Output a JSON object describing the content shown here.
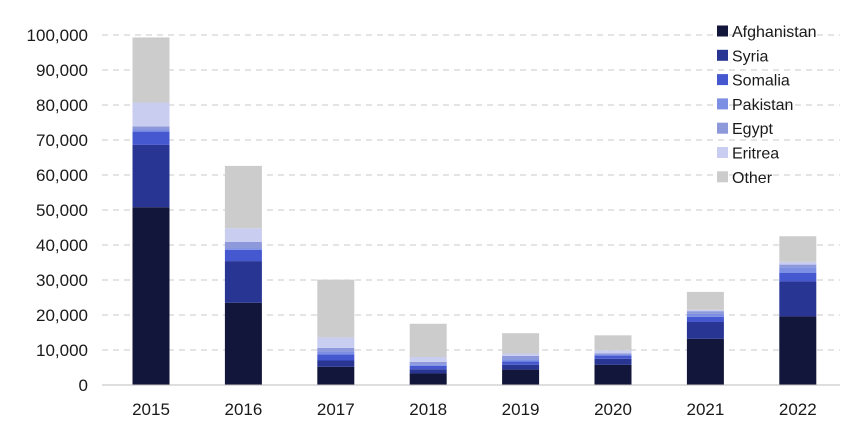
{
  "chart_data": {
    "type": "bar",
    "stacked": true,
    "title": "",
    "xlabel": "",
    "ylabel": "",
    "categories": [
      "2015",
      "2016",
      "2017",
      "2018",
      "2019",
      "2020",
      "2021",
      "2022"
    ],
    "ylim": [
      0,
      100000
    ],
    "yticks": [
      0,
      10000,
      20000,
      30000,
      40000,
      50000,
      60000,
      70000,
      80000,
      90000,
      100000
    ],
    "ytick_labels": [
      "0",
      "10,000",
      "20,000",
      "30,000",
      "40,000",
      "50,000",
      "60,000",
      "70,000",
      "80,000",
      "90,000",
      "100,000"
    ],
    "grid": true,
    "legend_position": "top-right",
    "series": [
      {
        "name": "Afghanistan",
        "color": "#12163a",
        "values": [
          50800,
          23500,
          5200,
          3300,
          4400,
          5800,
          13200,
          19600
        ]
      },
      {
        "name": "Syria",
        "color": "#283593",
        "values": [
          17800,
          11900,
          1800,
          1200,
          1400,
          1700,
          4800,
          10000
        ]
      },
      {
        "name": "Somalia",
        "color": "#4558cf",
        "values": [
          3800,
          3200,
          1700,
          1000,
          900,
          900,
          1500,
          2400
        ]
      },
      {
        "name": "Pakistan",
        "color": "#7d8fe3",
        "values": [
          600,
          400,
          900,
          400,
          700,
          300,
          800,
          1600
        ]
      },
      {
        "name": "Egypt",
        "color": "#8d99da",
        "values": [
          900,
          1900,
          1000,
          700,
          900,
          300,
          800,
          800
        ]
      },
      {
        "name": "Eritrea",
        "color": "#c9cdf0",
        "values": [
          6800,
          3900,
          3000,
          1400,
          700,
          900,
          400,
          800
        ]
      },
      {
        "name": "Other",
        "color": "#cccccc",
        "values": [
          18600,
          17800,
          16500,
          9500,
          5800,
          4300,
          5100,
          7300
        ]
      }
    ]
  }
}
